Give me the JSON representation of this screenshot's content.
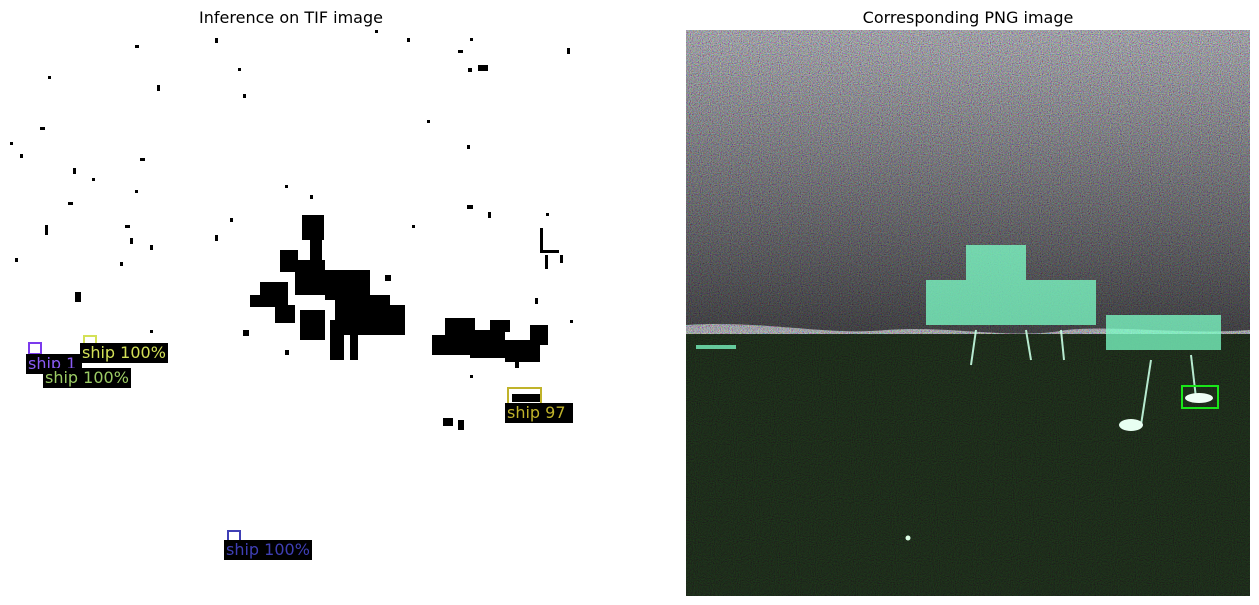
{
  "left_panel": {
    "title": "Inference on TIF image",
    "detections": [
      {
        "label": "ship 1",
        "color": "#7c3aed"
      },
      {
        "label": "ship 100%",
        "color": "#d4e157"
      },
      {
        "label": "ship 100%",
        "color": "#9ccc65"
      },
      {
        "label": "ship 97",
        "color": "#c0b32a"
      },
      {
        "label": "ship 100%",
        "color": "#3f3fb5"
      }
    ]
  },
  "right_panel": {
    "title": "Corresponding PNG image",
    "box_color": "#19e619"
  }
}
